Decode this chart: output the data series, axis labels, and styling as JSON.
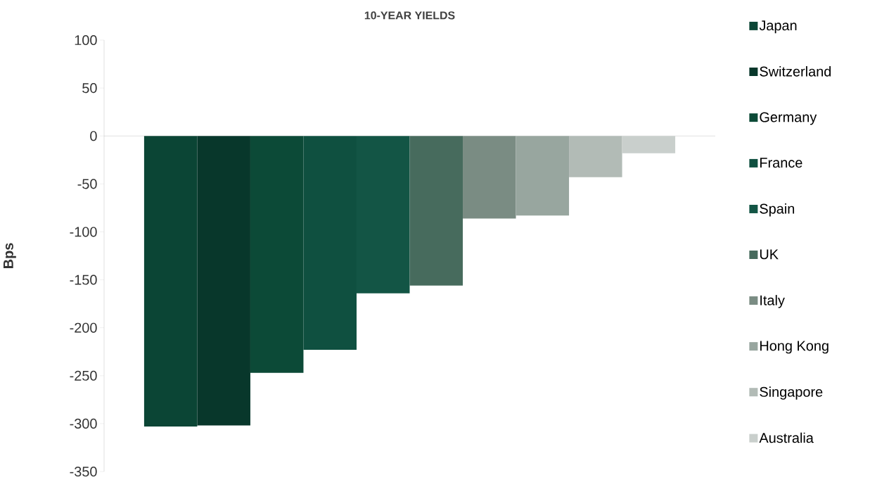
{
  "chart_data": {
    "type": "bar",
    "title": "10-YEAR YIELDS",
    "ylabel": "Bps",
    "categories": [
      null
    ],
    "series": [
      {
        "name": "Japan",
        "color": "#0b4535",
        "values": [
          -303
        ]
      },
      {
        "name": "Switzerland",
        "color": "#08372b",
        "values": [
          -302
        ]
      },
      {
        "name": "Germany",
        "color": "#0c4a37",
        "values": [
          -247
        ]
      },
      {
        "name": "France",
        "color": "#0f5040",
        "values": [
          -223
        ]
      },
      {
        "name": "Spain",
        "color": "#135545",
        "values": [
          -164
        ]
      },
      {
        "name": "UK",
        "color": "#476b5d",
        "values": [
          -156
        ]
      },
      {
        "name": "Italy",
        "color": "#7a8c83",
        "values": [
          -86
        ]
      },
      {
        "name": "Hong Kong",
        "color": "#98a69f",
        "values": [
          -83
        ]
      },
      {
        "name": "Singapore",
        "color": "#b2bbb6",
        "values": [
          -43
        ]
      },
      {
        "name": "Australia",
        "color": "#c9cfcc",
        "values": [
          -18
        ]
      }
    ],
    "ylim": [
      -350,
      100
    ],
    "yticks": [
      100,
      50,
      0,
      -50,
      -100,
      -150,
      -200,
      -250,
      -300,
      -350
    ],
    "legend": "right"
  }
}
